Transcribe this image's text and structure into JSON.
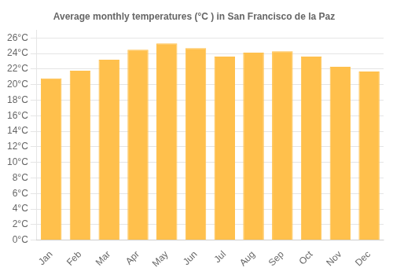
{
  "chart_data": {
    "type": "bar",
    "title": "Average monthly temperatures (°C ) in San Francisco de la Paz",
    "categories": [
      "Jan",
      "Feb",
      "Mar",
      "Apr",
      "May",
      "Jun",
      "Jul",
      "Aug",
      "Sep",
      "Oct",
      "Nov",
      "Dec"
    ],
    "values": [
      20.8,
      21.8,
      23.2,
      24.5,
      25.3,
      24.7,
      23.6,
      24.1,
      24.3,
      23.6,
      22.3,
      21.7
    ],
    "color": "#FFC04C",
    "ylim": [
      0,
      27
    ],
    "yticks": [
      {
        "value": 0,
        "label": "0°C"
      },
      {
        "value": 2,
        "label": "2°C"
      },
      {
        "value": 4,
        "label": "4°C"
      },
      {
        "value": 6,
        "label": "6°C"
      },
      {
        "value": 8,
        "label": "8°C"
      },
      {
        "value": 10,
        "label": "10°C"
      },
      {
        "value": 12,
        "label": "12°C"
      },
      {
        "value": 14,
        "label": "14°C"
      },
      {
        "value": 16,
        "label": "16°C"
      },
      {
        "value": 18,
        "label": "18°C"
      },
      {
        "value": 20,
        "label": "20°C"
      },
      {
        "value": 22,
        "label": "22°C"
      },
      {
        "value": 24,
        "label": "24°C"
      },
      {
        "value": 26,
        "label": "26°C"
      }
    ],
    "grid": true
  }
}
